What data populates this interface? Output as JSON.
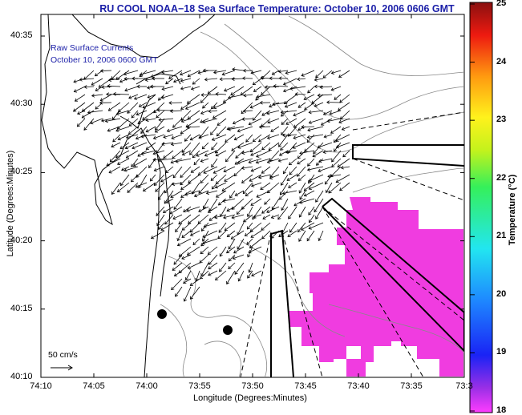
{
  "title": "RU COOL  NOAA−18  Sea Surface Temperature:  October 10, 2006 0606 GMT",
  "annotations": {
    "line1": "Raw Surface Currents",
    "line2": "October 10, 2006 0600 GMT",
    "scale_label": "50 cm/s"
  },
  "axes": {
    "xlabel": "Longitude (Degrees:Minutes)",
    "ylabel": "Latitude (Degrees:Minutes)",
    "x_ticks": [
      "74:10",
      "74:05",
      "74:00",
      "73:55",
      "73:50",
      "73:45",
      "73:40",
      "73:35",
      "73:3"
    ],
    "y_ticks": [
      "40:35",
      "40:30",
      "40:25",
      "40:20",
      "40:15",
      "40:10"
    ]
  },
  "colorbar": {
    "label": "Temperature (°C)",
    "ticks": [
      "25",
      "24",
      "23",
      "22",
      "21",
      "20",
      "19",
      "18"
    ],
    "range": [
      18,
      25
    ]
  },
  "colors": {
    "title": "#1b1fa8",
    "sst_patch": "#f03ce0",
    "coast": "#000000",
    "bathymetry": "#888888"
  }
}
